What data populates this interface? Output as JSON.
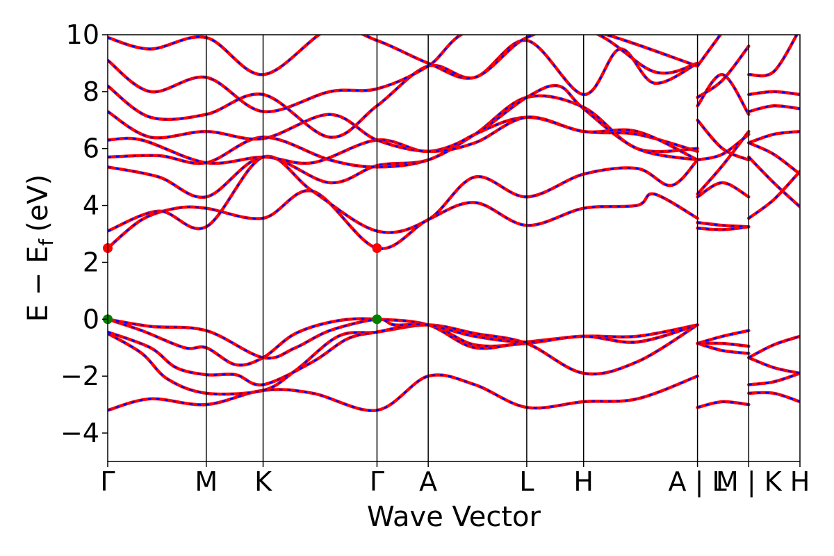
{
  "chart_data": {
    "type": "line",
    "xlabel": "Wave Vector",
    "ylabel": "E − E",
    "ylabel_subscript": "f",
    "ylabel_unit": "(eV)",
    "ylim": [
      -5,
      10
    ],
    "yticks": [
      {
        "value": -4,
        "label": "−4"
      },
      {
        "value": -2,
        "label": "−2"
      },
      {
        "value": 0,
        "label": "0"
      },
      {
        "value": 2,
        "label": "2"
      },
      {
        "value": 4,
        "label": "4"
      },
      {
        "value": 6,
        "label": "6"
      },
      {
        "value": 8,
        "label": "8"
      },
      {
        "value": 10,
        "label": "10"
      }
    ],
    "kpoints": [
      {
        "label": "Γ",
        "pos": 0.0
      },
      {
        "label": "M",
        "pos": 0.577
      },
      {
        "label": "K",
        "pos": 0.91
      },
      {
        "label": "Γ",
        "pos": 1.577
      },
      {
        "label": "A",
        "pos": 1.877
      },
      {
        "label": "L",
        "pos": 2.454
      },
      {
        "label": "H",
        "pos": 2.787
      },
      {
        "label": "A | L",
        "pos": 3.454
      },
      {
        "label": "M | K",
        "pos": 3.754
      },
      {
        "label": "H",
        "pos": 4.054
      }
    ],
    "colors": {
      "bands_solid": "#ff0000",
      "bands_dashed": "#0000ff",
      "vbm_marker": "#008000",
      "cbm_marker": "#ff0000",
      "kline": "#000000"
    },
    "band_extrema": [
      {
        "type": "VBM",
        "points": [
          [
            0.0,
            0.0
          ],
          [
            1.577,
            0.0
          ]
        ]
      },
      {
        "type": "CBM",
        "points": [
          [
            0.0,
            2.5
          ],
          [
            1.577,
            2.5
          ]
        ]
      }
    ],
    "series": [
      {
        "values": [
          [
            0,
            -3.2
          ],
          [
            0.25,
            -2.8
          ],
          [
            0.577,
            -3.0
          ],
          [
            0.91,
            -2.5
          ],
          [
            1.2,
            -2.6
          ],
          [
            1.577,
            -3.2
          ],
          [
            1.877,
            -2.0
          ],
          [
            2.15,
            -2.3
          ],
          [
            2.454,
            -3.1
          ],
          [
            2.787,
            -2.9
          ],
          [
            3.1,
            -2.8
          ],
          [
            3.454,
            -2.0
          ]
        ]
      },
      {
        "values": [
          [
            0,
            -0.5
          ],
          [
            0.2,
            -1.2
          ],
          [
            0.35,
            -2.1
          ],
          [
            0.577,
            -2.6
          ],
          [
            0.91,
            -2.5
          ],
          [
            1.1,
            -1.8
          ],
          [
            1.35,
            -0.6
          ],
          [
            1.577,
            -0.45
          ],
          [
            1.877,
            -0.2
          ],
          [
            2.15,
            -0.5
          ],
          [
            2.454,
            -0.85
          ],
          [
            2.787,
            -1.9
          ],
          [
            3.1,
            -1.5
          ],
          [
            3.454,
            -0.2
          ]
        ]
      },
      {
        "values": [
          [
            0,
            -0.45
          ],
          [
            0.25,
            -1.0
          ],
          [
            0.4,
            -1.7
          ],
          [
            0.577,
            -1.95
          ],
          [
            0.75,
            -1.95
          ],
          [
            0.91,
            -2.3
          ],
          [
            1.2,
            -1.5
          ],
          [
            1.4,
            -0.7
          ],
          [
            1.577,
            -0.45
          ],
          [
            1.877,
            -0.2
          ],
          [
            2.15,
            -0.9
          ],
          [
            2.454,
            -0.85
          ],
          [
            2.787,
            -0.6
          ],
          [
            3.1,
            -0.8
          ],
          [
            3.454,
            -0.2
          ]
        ]
      },
      {
        "values": [
          [
            0,
            0.0
          ],
          [
            0.2,
            -0.4
          ],
          [
            0.45,
            -1.0
          ],
          [
            0.577,
            -1.0
          ],
          [
            0.75,
            -1.6
          ],
          [
            0.91,
            -1.35
          ],
          [
            1.1,
            -0.5
          ],
          [
            1.35,
            -0.05
          ],
          [
            1.577,
            0.0
          ],
          [
            1.877,
            -0.2
          ],
          [
            2.15,
            -1.0
          ],
          [
            2.454,
            -0.8
          ],
          [
            2.787,
            -0.6
          ],
          [
            3.1,
            -0.6
          ],
          [
            3.454,
            -0.2
          ]
        ]
      },
      {
        "values": [
          [
            0,
            0.0
          ],
          [
            0.25,
            -0.25
          ],
          [
            0.577,
            -0.4
          ],
          [
            0.91,
            -1.35
          ],
          [
            1.1,
            -1.0
          ],
          [
            1.3,
            -0.4
          ],
          [
            1.577,
            0.0
          ],
          [
            1.68,
            -0.2
          ],
          [
            1.877,
            -0.2
          ],
          [
            2.15,
            -0.6
          ],
          [
            2.454,
            -0.8
          ],
          [
            2.787,
            -0.6
          ],
          [
            3.1,
            -0.8
          ],
          [
            3.454,
            -0.2
          ]
        ]
      },
      {
        "values": [
          [
            0,
            2.5
          ],
          [
            0.2,
            3.5
          ],
          [
            0.4,
            3.9
          ],
          [
            0.577,
            3.9
          ],
          [
            0.91,
            3.55
          ],
          [
            1.2,
            4.5
          ],
          [
            1.577,
            2.5
          ],
          [
            1.877,
            3.5
          ],
          [
            2.15,
            4.1
          ],
          [
            2.454,
            3.3
          ],
          [
            2.787,
            3.9
          ],
          [
            3.1,
            4.0
          ],
          [
            3.2,
            4.4
          ],
          [
            3.454,
            3.55
          ]
        ]
      },
      {
        "values": [
          [
            0,
            3.1
          ],
          [
            0.3,
            3.8
          ],
          [
            0.577,
            3.25
          ],
          [
            0.91,
            5.7
          ],
          [
            1.2,
            4.5
          ],
          [
            1.577,
            3.1
          ],
          [
            1.877,
            3.5
          ],
          [
            2.15,
            5.0
          ],
          [
            2.454,
            4.3
          ],
          [
            2.787,
            5.1
          ],
          [
            3.1,
            5.3
          ],
          [
            3.3,
            4.7
          ],
          [
            3.454,
            5.6
          ]
        ]
      },
      {
        "values": [
          [
            0,
            5.35
          ],
          [
            0.3,
            5.0
          ],
          [
            0.577,
            4.3
          ],
          [
            0.91,
            5.7
          ],
          [
            1.3,
            4.8
          ],
          [
            1.577,
            5.4
          ],
          [
            1.877,
            5.6
          ],
          [
            2.15,
            6.5
          ],
          [
            2.454,
            7.1
          ],
          [
            2.787,
            6.6
          ],
          [
            3.1,
            6.5
          ],
          [
            3.454,
            5.9
          ]
        ]
      },
      {
        "values": [
          [
            0,
            5.7
          ],
          [
            0.3,
            5.75
          ],
          [
            0.577,
            5.5
          ],
          [
            0.91,
            6.4
          ],
          [
            1.3,
            5.6
          ],
          [
            1.577,
            5.35
          ],
          [
            1.877,
            5.6
          ],
          [
            2.15,
            6.5
          ],
          [
            2.454,
            7.8
          ],
          [
            2.787,
            7.45
          ],
          [
            3.1,
            6.0
          ],
          [
            3.454,
            6.0
          ]
        ]
      },
      {
        "values": [
          [
            0,
            6.3
          ],
          [
            0.2,
            6.3
          ],
          [
            0.577,
            5.5
          ],
          [
            0.91,
            5.7
          ],
          [
            1.2,
            5.5
          ],
          [
            1.577,
            6.3
          ],
          [
            1.877,
            5.9
          ],
          [
            2.15,
            6.5
          ],
          [
            2.454,
            7.8
          ],
          [
            2.64,
            8.2
          ],
          [
            2.787,
            7.4
          ],
          [
            3.1,
            6.0
          ],
          [
            3.454,
            5.6
          ]
        ]
      },
      {
        "values": [
          [
            0,
            7.3
          ],
          [
            0.25,
            6.4
          ],
          [
            0.577,
            6.6
          ],
          [
            0.91,
            6.35
          ],
          [
            1.3,
            7.2
          ],
          [
            1.577,
            6.3
          ],
          [
            1.877,
            5.9
          ],
          [
            2.15,
            6.2
          ],
          [
            2.454,
            7.1
          ],
          [
            2.787,
            6.6
          ],
          [
            3.1,
            6.6
          ],
          [
            3.454,
            5.6
          ]
        ]
      },
      {
        "values": [
          [
            0,
            8.2
          ],
          [
            0.25,
            7.1
          ],
          [
            0.577,
            7.2
          ],
          [
            0.91,
            7.9
          ],
          [
            1.3,
            6.4
          ],
          [
            1.577,
            7.5
          ],
          [
            1.877,
            8.9
          ],
          [
            2.15,
            8.5
          ],
          [
            2.454,
            9.8
          ],
          [
            2.787,
            7.9
          ],
          [
            3.0,
            9.5
          ],
          [
            3.2,
            8.3
          ],
          [
            3.454,
            9.0
          ]
        ]
      },
      {
        "values": [
          [
            0,
            9.1
          ],
          [
            0.25,
            8.0
          ],
          [
            0.577,
            8.5
          ],
          [
            0.91,
            7.3
          ],
          [
            1.3,
            8.0
          ],
          [
            1.577,
            8.1
          ],
          [
            1.877,
            8.9
          ],
          [
            2.15,
            10.2
          ],
          [
            2.787,
            10.2
          ],
          [
            3.2,
            8.7
          ],
          [
            3.454,
            9.0
          ]
        ]
      },
      {
        "values": [
          [
            0,
            9.9
          ],
          [
            0.25,
            9.5
          ],
          [
            0.577,
            9.9
          ],
          [
            0.91,
            8.6
          ],
          [
            1.3,
            10.2
          ],
          [
            1.577,
            9.8
          ],
          [
            1.877,
            9.0
          ],
          [
            2.15,
            8.5
          ],
          [
            2.454,
            9.9
          ],
          [
            2.787,
            10.2
          ],
          [
            3.454,
            8.9
          ]
        ]
      },
      {
        "values": [
          [
            3.454,
            -3.1
          ],
          [
            3.6,
            -2.9
          ],
          [
            3.754,
            -3.0
          ]
        ]
      },
      {
        "values": [
          [
            3.454,
            -0.85
          ],
          [
            3.6,
            -1.1
          ],
          [
            3.754,
            -1.2
          ]
        ]
      },
      {
        "values": [
          [
            3.454,
            -0.85
          ],
          [
            3.6,
            -0.6
          ],
          [
            3.754,
            -0.4
          ]
        ]
      },
      {
        "values": [
          [
            3.454,
            -0.85
          ],
          [
            3.6,
            -0.85
          ],
          [
            3.754,
            -0.95
          ]
        ]
      },
      {
        "values": [
          [
            3.454,
            3.2
          ],
          [
            3.6,
            3.15
          ],
          [
            3.754,
            3.25
          ]
        ]
      },
      {
        "values": [
          [
            3.454,
            3.4
          ],
          [
            3.6,
            3.3
          ],
          [
            3.754,
            3.25
          ]
        ]
      },
      {
        "values": [
          [
            3.454,
            4.3
          ],
          [
            3.6,
            4.8
          ],
          [
            3.754,
            4.3
          ]
        ]
      },
      {
        "values": [
          [
            3.454,
            4.4
          ],
          [
            3.6,
            5.4
          ],
          [
            3.754,
            6.6
          ]
        ]
      },
      {
        "values": [
          [
            3.454,
            5.6
          ],
          [
            3.6,
            5.8
          ],
          [
            3.754,
            6.5
          ]
        ]
      },
      {
        "values": [
          [
            3.454,
            7.0
          ],
          [
            3.6,
            6.0
          ],
          [
            3.754,
            5.6
          ]
        ]
      },
      {
        "values": [
          [
            3.454,
            7.5
          ],
          [
            3.6,
            8.6
          ],
          [
            3.754,
            7.2
          ]
        ]
      },
      {
        "values": [
          [
            3.454,
            7.8
          ],
          [
            3.6,
            8.4
          ],
          [
            3.754,
            9.6
          ]
        ]
      },
      {
        "values": [
          [
            3.454,
            8.9
          ],
          [
            3.6,
            10.1
          ]
        ]
      },
      {
        "values": [
          [
            3.754,
            -2.3
          ],
          [
            3.9,
            -2.2
          ],
          [
            4.054,
            -1.9
          ]
        ]
      },
      {
        "values": [
          [
            3.754,
            -1.35
          ],
          [
            3.9,
            -1.7
          ],
          [
            4.054,
            -1.9
          ]
        ]
      },
      {
        "values": [
          [
            3.754,
            -1.35
          ],
          [
            3.9,
            -0.9
          ],
          [
            4.054,
            -0.6
          ]
        ]
      },
      {
        "values": [
          [
            3.754,
            -2.6
          ],
          [
            3.9,
            -2.6
          ],
          [
            4.054,
            -2.9
          ]
        ]
      },
      {
        "values": [
          [
            3.754,
            3.55
          ],
          [
            3.9,
            4.2
          ],
          [
            4.054,
            5.2
          ]
        ]
      },
      {
        "values": [
          [
            3.754,
            5.7
          ],
          [
            3.9,
            4.8
          ],
          [
            4.054,
            3.95
          ]
        ]
      },
      {
        "values": [
          [
            3.754,
            6.2
          ],
          [
            3.9,
            6.5
          ],
          [
            4.054,
            6.6
          ]
        ]
      },
      {
        "values": [
          [
            3.754,
            6.2
          ],
          [
            3.9,
            5.8
          ],
          [
            4.054,
            5.1
          ]
        ]
      },
      {
        "values": [
          [
            3.754,
            7.9
          ],
          [
            3.9,
            8.0
          ],
          [
            4.054,
            7.9
          ]
        ]
      },
      {
        "values": [
          [
            3.754,
            7.3
          ],
          [
            3.9,
            7.5
          ],
          [
            4.054,
            7.4
          ]
        ]
      },
      {
        "values": [
          [
            3.754,
            8.6
          ],
          [
            3.9,
            8.7
          ],
          [
            4.054,
            10.2
          ]
        ]
      }
    ]
  }
}
